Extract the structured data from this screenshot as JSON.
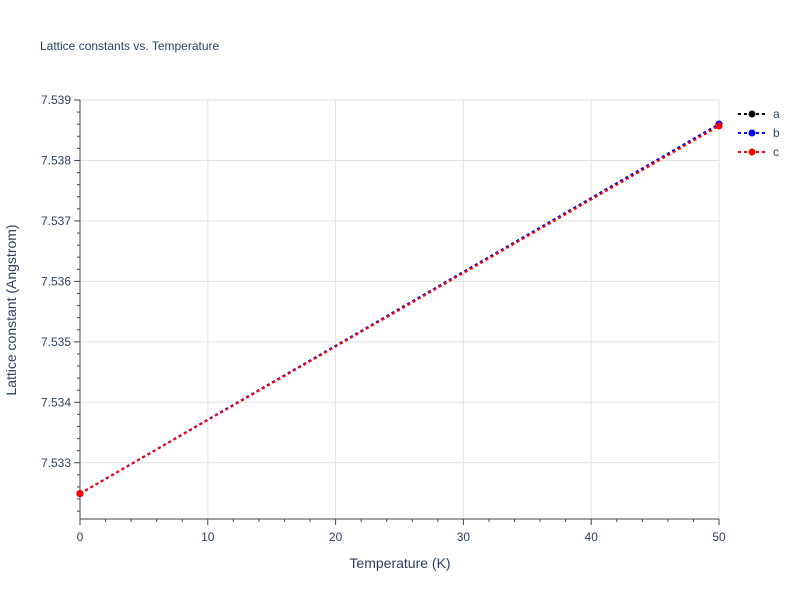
{
  "chart_data": {
    "type": "line",
    "title": "Lattice constants vs. Temperature",
    "xlabel": "Temperature (K)",
    "ylabel": "Lattice constant (Angstrom)",
    "xlim": [
      0,
      50
    ],
    "ylim": [
      7.53207,
      7.539
    ],
    "xticks": [
      0,
      10,
      20,
      30,
      40,
      50
    ],
    "xtick_labels": [
      "0",
      "10",
      "20",
      "30",
      "40",
      "50"
    ],
    "yticks": [
      7.533,
      7.534,
      7.535,
      7.536,
      7.537,
      7.538,
      7.539
    ],
    "ytick_labels": [
      "7.533",
      "7.534",
      "7.535",
      "7.536",
      "7.537",
      "7.538",
      "7.539"
    ],
    "grid": true,
    "legend_position": "top-right",
    "series": [
      {
        "name": "a",
        "color": "#000000",
        "x": [
          0,
          50
        ],
        "y": [
          7.53249,
          7.5386
        ]
      },
      {
        "name": "b",
        "color": "#0000ff",
        "x": [
          0,
          50
        ],
        "y": [
          7.53249,
          7.5386
        ]
      },
      {
        "name": "c",
        "color": "#ff0000",
        "x": [
          0,
          50
        ],
        "y": [
          7.53249,
          7.53857
        ]
      }
    ]
  }
}
